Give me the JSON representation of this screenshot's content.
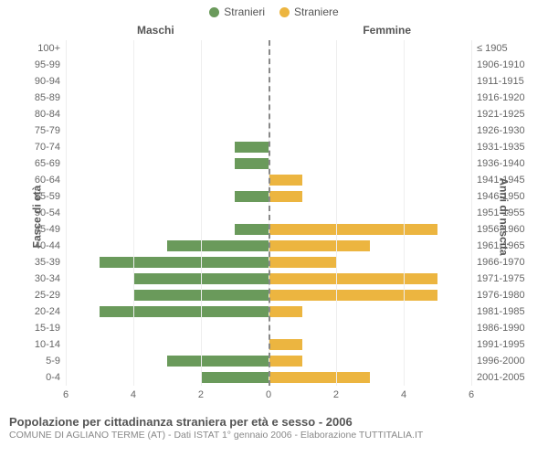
{
  "legend": {
    "male": {
      "label": "Stranieri",
      "color": "#6a9a5b"
    },
    "female": {
      "label": "Straniere",
      "color": "#ecb540"
    }
  },
  "headers": {
    "left": "Maschi",
    "right": "Femmine"
  },
  "axis_labels": {
    "left": "Fasce di età",
    "right": "Anni di nascita"
  },
  "chart": {
    "type": "population-pyramid",
    "xmax": 6,
    "x_ticks": [
      6,
      4,
      2,
      0,
      2,
      4,
      6
    ],
    "grid_color": "#eeeeee",
    "center_line_color": "#888888",
    "background": "#ffffff",
    "bar_color_male": "#6a9a5b",
    "bar_color_female": "#ecb540",
    "label_fontsize": 11,
    "rows": [
      {
        "age": "100+",
        "birth": "≤ 1905",
        "m": 0,
        "f": 0
      },
      {
        "age": "95-99",
        "birth": "1906-1910",
        "m": 0,
        "f": 0
      },
      {
        "age": "90-94",
        "birth": "1911-1915",
        "m": 0,
        "f": 0
      },
      {
        "age": "85-89",
        "birth": "1916-1920",
        "m": 0,
        "f": 0
      },
      {
        "age": "80-84",
        "birth": "1921-1925",
        "m": 0,
        "f": 0
      },
      {
        "age": "75-79",
        "birth": "1926-1930",
        "m": 0,
        "f": 0
      },
      {
        "age": "70-74",
        "birth": "1931-1935",
        "m": 1,
        "f": 0
      },
      {
        "age": "65-69",
        "birth": "1936-1940",
        "m": 1,
        "f": 0
      },
      {
        "age": "60-64",
        "birth": "1941-1945",
        "m": 0,
        "f": 1
      },
      {
        "age": "55-59",
        "birth": "1946-1950",
        "m": 1,
        "f": 1
      },
      {
        "age": "50-54",
        "birth": "1951-1955",
        "m": 0,
        "f": 0
      },
      {
        "age": "45-49",
        "birth": "1956-1960",
        "m": 1,
        "f": 5
      },
      {
        "age": "40-44",
        "birth": "1961-1965",
        "m": 3,
        "f": 3
      },
      {
        "age": "35-39",
        "birth": "1966-1970",
        "m": 5,
        "f": 2
      },
      {
        "age": "30-34",
        "birth": "1971-1975",
        "m": 4,
        "f": 5
      },
      {
        "age": "25-29",
        "birth": "1976-1980",
        "m": 4,
        "f": 5
      },
      {
        "age": "20-24",
        "birth": "1981-1985",
        "m": 5,
        "f": 1
      },
      {
        "age": "15-19",
        "birth": "1986-1990",
        "m": 0,
        "f": 0
      },
      {
        "age": "10-14",
        "birth": "1991-1995",
        "m": 0,
        "f": 1
      },
      {
        "age": "5-9",
        "birth": "1996-2000",
        "m": 3,
        "f": 1
      },
      {
        "age": "0-4",
        "birth": "2001-2005",
        "m": 2,
        "f": 3
      }
    ]
  },
  "footer": {
    "title": "Popolazione per cittadinanza straniera per età e sesso - 2006",
    "subtitle": "COMUNE DI AGLIANO TERME (AT) - Dati ISTAT 1° gennaio 2006 - Elaborazione TUTTITALIA.IT"
  }
}
